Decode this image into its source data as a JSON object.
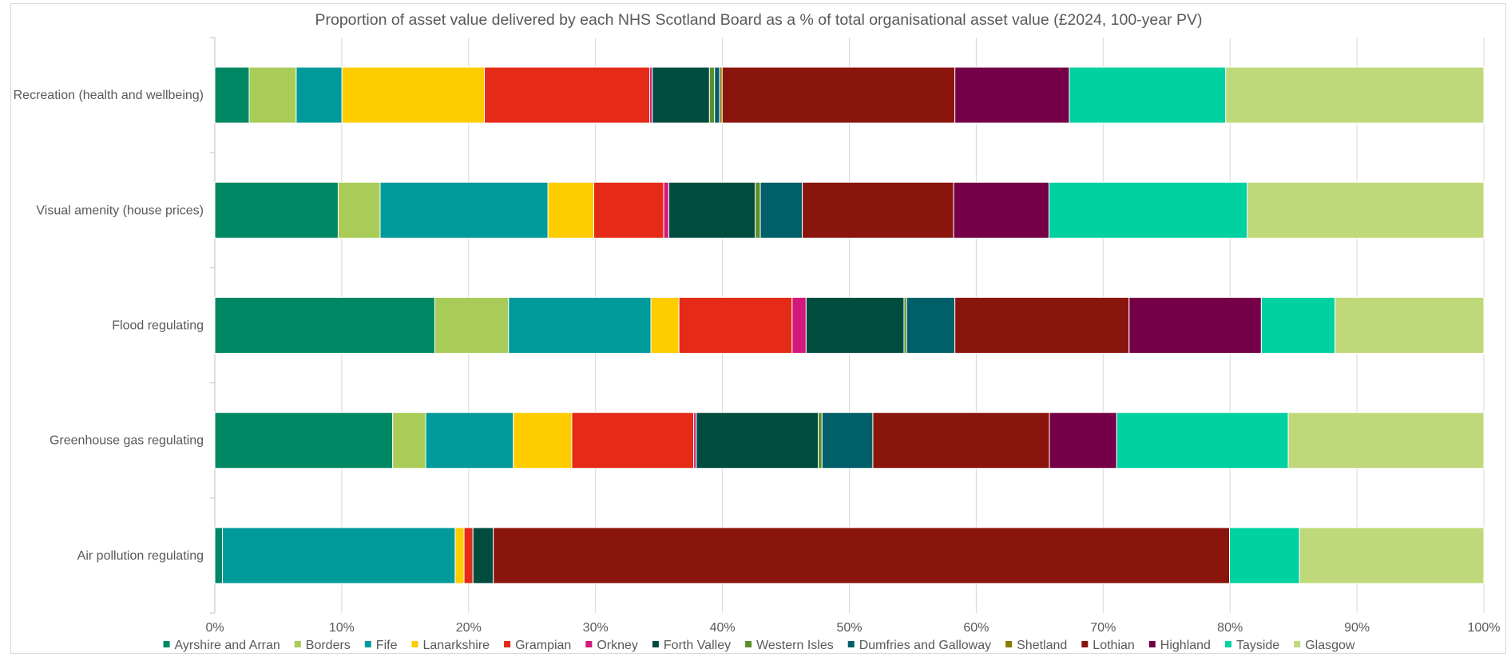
{
  "chart_data": {
    "type": "bar",
    "orientation": "horizontal",
    "stacked": "percent",
    "title": "Proportion of asset value delivered by each NHS Scotland Board as a % of total organisational asset value (£2024, 100-year PV)",
    "xlabel": "",
    "ylabel": "",
    "xlim": [
      0,
      100
    ],
    "x_ticks": [
      "0%",
      "10%",
      "20%",
      "30%",
      "40%",
      "50%",
      "60%",
      "70%",
      "80%",
      "90%",
      "100%"
    ],
    "grid": "vertical",
    "legend_position": "bottom",
    "categories": [
      "Recreation (health and wellbeing)",
      "Visual amenity (house prices)",
      "Flood regulating",
      "Greenhouse gas regulating",
      "Air pollution regulating"
    ],
    "series": [
      {
        "name": "Ayrshire and Arran",
        "color": "#008864",
        "values": [
          2.7,
          9.7,
          17.3,
          14.0,
          0.6
        ]
      },
      {
        "name": "Borders",
        "color": "#a9cc58",
        "values": [
          3.7,
          3.3,
          5.8,
          2.6,
          0.0
        ]
      },
      {
        "name": "Fife",
        "color": "#009a9a",
        "values": [
          3.6,
          13.2,
          11.2,
          6.9,
          18.3
        ]
      },
      {
        "name": "Lanarkshire",
        "color": "#ffcc00",
        "values": [
          11.2,
          3.6,
          2.2,
          4.6,
          0.7
        ]
      },
      {
        "name": "Grampian",
        "color": "#e52a17",
        "values": [
          13.0,
          5.5,
          8.9,
          9.6,
          0.7
        ]
      },
      {
        "name": "Orkney",
        "color": "#d4197d",
        "values": [
          0.2,
          0.4,
          1.1,
          0.2,
          0.0
        ]
      },
      {
        "name": "Forth Valley",
        "color": "#004d40",
        "values": [
          4.5,
          6.8,
          7.7,
          9.6,
          1.6
        ]
      },
      {
        "name": "Western Isles",
        "color": "#5d8e2a",
        "values": [
          0.4,
          0.4,
          0.2,
          0.3,
          0.0
        ]
      },
      {
        "name": "Dumfries and Galloway",
        "color": "#005f68",
        "values": [
          0.4,
          3.3,
          3.8,
          4.0,
          0.0
        ]
      },
      {
        "name": "Shetland",
        "color": "#8a7a00",
        "values": [
          0.2,
          0.0,
          0.0,
          0.0,
          0.0
        ]
      },
      {
        "name": "Lothian",
        "color": "#8a150d",
        "values": [
          18.3,
          11.9,
          13.7,
          13.9,
          57.9
        ]
      },
      {
        "name": "Highland",
        "color": "#750047",
        "values": [
          9.0,
          7.5,
          10.4,
          5.3,
          0.0
        ]
      },
      {
        "name": "Tayside",
        "color": "#00d1a1",
        "values": [
          12.3,
          15.6,
          5.8,
          13.5,
          5.5
        ]
      },
      {
        "name": "Glasgow",
        "color": "#bfd97a",
        "values": [
          20.3,
          18.6,
          11.7,
          15.4,
          14.5
        ]
      }
    ]
  }
}
